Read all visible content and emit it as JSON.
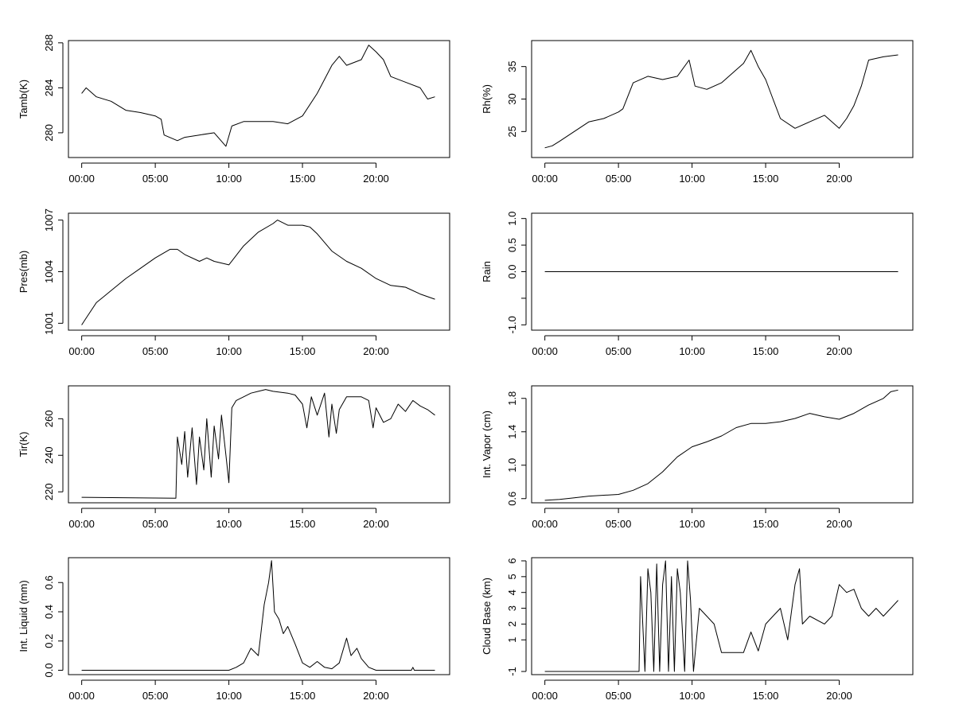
{
  "figure": {
    "background": "#ffffff",
    "line_color": "#000000"
  },
  "chart_data": [
    {
      "type": "line",
      "title": "",
      "xlabel": "",
      "ylabel": "Tamb(K)",
      "x_ticks": [
        "00:00",
        "05:00",
        "10:00",
        "15:00",
        "20:00"
      ],
      "xlim": [
        -0.9,
        25.0
      ],
      "ylim": [
        277.8,
        288.2
      ],
      "y_ticks": [
        280,
        284,
        288
      ],
      "y_tick_labels": [
        "280",
        "284",
        "288"
      ],
      "grid": false,
      "series": [
        {
          "x": [
            0.0,
            0.3,
            1.0,
            2.0,
            3.0,
            4.0,
            5.0,
            5.4,
            5.6,
            6.5,
            7.0,
            8.0,
            9.0,
            9.8,
            10.2,
            11.0,
            12.0,
            13.0,
            14.0,
            15.0,
            16.0,
            17.0,
            17.5,
            18.0,
            19.0,
            19.5,
            20.0,
            20.5,
            21.0,
            22.0,
            23.0,
            23.5,
            24.0
          ],
          "y": [
            283.5,
            284.0,
            283.2,
            282.8,
            282.0,
            281.8,
            281.5,
            281.2,
            279.8,
            279.3,
            279.6,
            279.8,
            280.0,
            278.8,
            280.6,
            281.0,
            281.0,
            281.0,
            280.8,
            281.5,
            283.5,
            286.0,
            286.8,
            286.0,
            286.5,
            287.8,
            287.2,
            286.5,
            285.0,
            284.5,
            284.0,
            283.0,
            283.2
          ]
        }
      ]
    },
    {
      "type": "line",
      "title": "",
      "xlabel": "",
      "ylabel": "Rh(%)",
      "x_ticks": [
        "00:00",
        "05:00",
        "10:00",
        "15:00",
        "20:00"
      ],
      "xlim": [
        -0.9,
        25.0
      ],
      "ylim": [
        21.0,
        39.0
      ],
      "y_ticks": [
        25,
        30,
        35
      ],
      "y_tick_labels": [
        "25",
        "30",
        "35"
      ],
      "grid": false,
      "series": [
        {
          "x": [
            0.0,
            0.5,
            1.0,
            2.0,
            3.0,
            4.0,
            5.0,
            5.3,
            6.0,
            7.0,
            8.0,
            9.0,
            9.8,
            10.2,
            11.0,
            12.0,
            13.0,
            13.5,
            14.0,
            14.5,
            15.0,
            15.5,
            16.0,
            17.0,
            18.0,
            19.0,
            20.0,
            20.5,
            21.0,
            21.5,
            22.0,
            23.0,
            24.0
          ],
          "y": [
            22.5,
            22.8,
            23.5,
            25.0,
            26.5,
            27.0,
            28.0,
            28.5,
            32.5,
            33.5,
            33.0,
            33.5,
            36.0,
            32.0,
            31.5,
            32.5,
            34.5,
            35.5,
            37.5,
            35.0,
            33.0,
            30.0,
            27.0,
            25.5,
            26.5,
            27.5,
            25.5,
            27.0,
            29.0,
            32.0,
            36.0,
            36.5,
            36.8
          ]
        }
      ]
    },
    {
      "type": "line",
      "title": "",
      "xlabel": "",
      "ylabel": "Pres(mb)",
      "x_ticks": [
        "00:00",
        "05:00",
        "10:00",
        "15:00",
        "20:00"
      ],
      "xlim": [
        -0.9,
        25.0
      ],
      "ylim": [
        1000.6,
        1007.4
      ],
      "y_ticks": [
        1001,
        1004,
        1007
      ],
      "y_tick_labels": [
        "1001",
        "1004",
        "1007"
      ],
      "grid": false,
      "series": [
        {
          "x": [
            0.0,
            0.3,
            1.0,
            2.0,
            3.0,
            4.0,
            5.0,
            6.0,
            6.5,
            7.0,
            8.0,
            8.5,
            9.0,
            10.0,
            11.0,
            12.0,
            13.0,
            13.3,
            14.0,
            15.0,
            15.5,
            16.0,
            17.0,
            18.0,
            19.0,
            20.0,
            21.0,
            22.0,
            23.0,
            24.0
          ],
          "y": [
            1000.9,
            1001.3,
            1002.2,
            1002.9,
            1003.6,
            1004.2,
            1004.8,
            1005.3,
            1005.3,
            1005.0,
            1004.6,
            1004.8,
            1004.6,
            1004.4,
            1005.5,
            1006.3,
            1006.8,
            1007.0,
            1006.7,
            1006.7,
            1006.6,
            1006.2,
            1005.2,
            1004.6,
            1004.2,
            1003.6,
            1003.2,
            1003.1,
            1002.7,
            1002.4
          ]
        }
      ]
    },
    {
      "type": "line",
      "title": "",
      "xlabel": "",
      "ylabel": "Rain",
      "x_ticks": [
        "00:00",
        "05:00",
        "10:00",
        "15:00",
        "20:00"
      ],
      "xlim": [
        -0.9,
        25.0
      ],
      "ylim": [
        -1.1,
        1.1
      ],
      "y_ticks": [
        -1.0,
        -0.5,
        0.0,
        0.5,
        1.0
      ],
      "y_tick_labels": [
        "-1.0",
        "",
        "0.0",
        "0.5",
        "1.0"
      ],
      "grid": false,
      "series": [
        {
          "x": [
            0.0,
            24.0
          ],
          "y": [
            0.0,
            0.0
          ]
        }
      ]
    },
    {
      "type": "line",
      "title": "",
      "xlabel": "",
      "ylabel": "Tir(K)",
      "x_ticks": [
        "00:00",
        "05:00",
        "10:00",
        "15:00",
        "20:00"
      ],
      "xlim": [
        -0.9,
        25.0
      ],
      "ylim": [
        214.0,
        278.0
      ],
      "y_ticks": [
        220,
        240,
        260
      ],
      "y_tick_labels": [
        "220",
        "240",
        "260"
      ],
      "grid": false,
      "series": [
        {
          "x": [
            0.0,
            6.4,
            6.5,
            6.8,
            7.0,
            7.2,
            7.5,
            7.8,
            8.0,
            8.3,
            8.5,
            8.8,
            9.0,
            9.3,
            9.5,
            9.8,
            10.0,
            10.2,
            10.5,
            11.0,
            11.5,
            12.0,
            12.5,
            13.0,
            14.0,
            14.5,
            15.0,
            15.3,
            15.6,
            16.0,
            16.5,
            16.8,
            17.0,
            17.3,
            17.5,
            18.0,
            19.0,
            19.5,
            19.8,
            20.0,
            20.5,
            21.0,
            21.5,
            22.0,
            22.5,
            23.0,
            23.5,
            24.0
          ],
          "y": [
            217.0,
            216.5,
            250.0,
            235.0,
            253.0,
            228.0,
            255.0,
            224.0,
            250.0,
            232.0,
            260.0,
            228.0,
            256.0,
            238.0,
            262.0,
            240.0,
            225.0,
            266.0,
            270.0,
            272.0,
            274.0,
            275.0,
            276.0,
            275.0,
            274.0,
            273.0,
            268.0,
            255.0,
            272.0,
            262.0,
            274.0,
            250.0,
            268.0,
            252.0,
            265.0,
            272.0,
            272.0,
            270.0,
            255.0,
            266.0,
            258.0,
            260.0,
            268.0,
            264.0,
            270.0,
            267.0,
            265.0,
            262.0
          ]
        }
      ]
    },
    {
      "type": "line",
      "title": "",
      "xlabel": "",
      "ylabel": "Int. Vapor (cm)",
      "x_ticks": [
        "00:00",
        "05:00",
        "10:00",
        "15:00",
        "20:00"
      ],
      "xlim": [
        -0.9,
        25.0
      ],
      "ylim": [
        0.55,
        1.95
      ],
      "y_ticks": [
        0.6,
        1.0,
        1.4,
        1.8
      ],
      "y_tick_labels": [
        "0.6",
        "1.0",
        "1.4",
        "1.8"
      ],
      "grid": false,
      "series": [
        {
          "x": [
            0.0,
            1.0,
            2.0,
            3.0,
            4.0,
            5.0,
            6.0,
            7.0,
            8.0,
            9.0,
            10.0,
            11.0,
            12.0,
            13.0,
            14.0,
            15.0,
            16.0,
            17.0,
            18.0,
            19.0,
            20.0,
            21.0,
            22.0,
            23.0,
            23.5,
            24.0
          ],
          "y": [
            0.58,
            0.59,
            0.61,
            0.63,
            0.64,
            0.65,
            0.7,
            0.78,
            0.92,
            1.1,
            1.22,
            1.28,
            1.35,
            1.45,
            1.5,
            1.5,
            1.52,
            1.56,
            1.62,
            1.58,
            1.55,
            1.62,
            1.72,
            1.8,
            1.88,
            1.9
          ]
        }
      ]
    },
    {
      "type": "line",
      "title": "",
      "xlabel": "",
      "ylabel": "Int. Liquid (mm)",
      "x_ticks": [
        "00:00",
        "05:00",
        "10:00",
        "15:00",
        "20:00"
      ],
      "xlim": [
        -0.9,
        25.0
      ],
      "ylim": [
        -0.03,
        0.77
      ],
      "y_ticks": [
        0.0,
        0.2,
        0.4,
        0.6
      ],
      "y_tick_labels": [
        "0.0",
        "0.2",
        "0.4",
        "0.6"
      ],
      "grid": false,
      "series": [
        {
          "x": [
            0.0,
            10.0,
            10.5,
            11.0,
            11.5,
            12.0,
            12.4,
            12.7,
            12.9,
            13.1,
            13.4,
            13.7,
            14.0,
            14.5,
            15.0,
            15.5,
            16.0,
            16.5,
            17.0,
            17.5,
            18.0,
            18.3,
            18.7,
            19.0,
            19.5,
            20.0,
            22.4,
            22.5,
            22.6,
            24.0
          ],
          "y": [
            0.0,
            0.0,
            0.02,
            0.05,
            0.15,
            0.1,
            0.45,
            0.6,
            0.75,
            0.4,
            0.35,
            0.25,
            0.3,
            0.18,
            0.05,
            0.02,
            0.06,
            0.02,
            0.01,
            0.05,
            0.22,
            0.1,
            0.15,
            0.08,
            0.02,
            0.0,
            0.0,
            0.02,
            0.0,
            0.0
          ]
        }
      ]
    },
    {
      "type": "line",
      "title": "",
      "xlabel": "",
      "ylabel": "Cloud Base (km)",
      "x_ticks": [
        "00:00",
        "05:00",
        "10:00",
        "15:00",
        "20:00"
      ],
      "xlim": [
        -0.9,
        25.0
      ],
      "ylim": [
        -1.2,
        6.2
      ],
      "y_ticks": [
        -1,
        1,
        2,
        3,
        4,
        5,
        6
      ],
      "y_tick_labels": [
        "-1",
        "1",
        "2",
        "3",
        "4",
        "5",
        "6"
      ],
      "grid": false,
      "series": [
        {
          "x": [
            0.0,
            6.4,
            6.5,
            6.8,
            7.0,
            7.2,
            7.4,
            7.6,
            7.8,
            8.0,
            8.2,
            8.4,
            8.6,
            8.8,
            9.0,
            9.2,
            9.5,
            9.7,
            9.9,
            10.1,
            10.5,
            11.0,
            11.5,
            12.0,
            13.0,
            13.5,
            14.0,
            14.5,
            15.0,
            15.5,
            16.0,
            16.5,
            17.0,
            17.3,
            17.5,
            18.0,
            19.0,
            19.5,
            20.0,
            20.5,
            21.0,
            21.5,
            22.0,
            22.5,
            23.0,
            23.5,
            24.0
          ],
          "y": [
            -1.0,
            -1.0,
            5.0,
            -1.0,
            5.5,
            4.0,
            -1.0,
            5.8,
            -1.0,
            4.5,
            6.0,
            -1.0,
            5.0,
            -1.0,
            5.5,
            4.0,
            -1.0,
            6.0,
            3.5,
            -1.0,
            3.0,
            2.5,
            2.0,
            0.2,
            0.2,
            0.2,
            1.5,
            0.3,
            2.0,
            2.5,
            3.0,
            1.0,
            4.5,
            5.5,
            2.0,
            2.5,
            2.0,
            2.5,
            4.5,
            4.0,
            4.2,
            3.0,
            2.5,
            3.0,
            2.5,
            3.0,
            3.5
          ]
        }
      ]
    }
  ]
}
